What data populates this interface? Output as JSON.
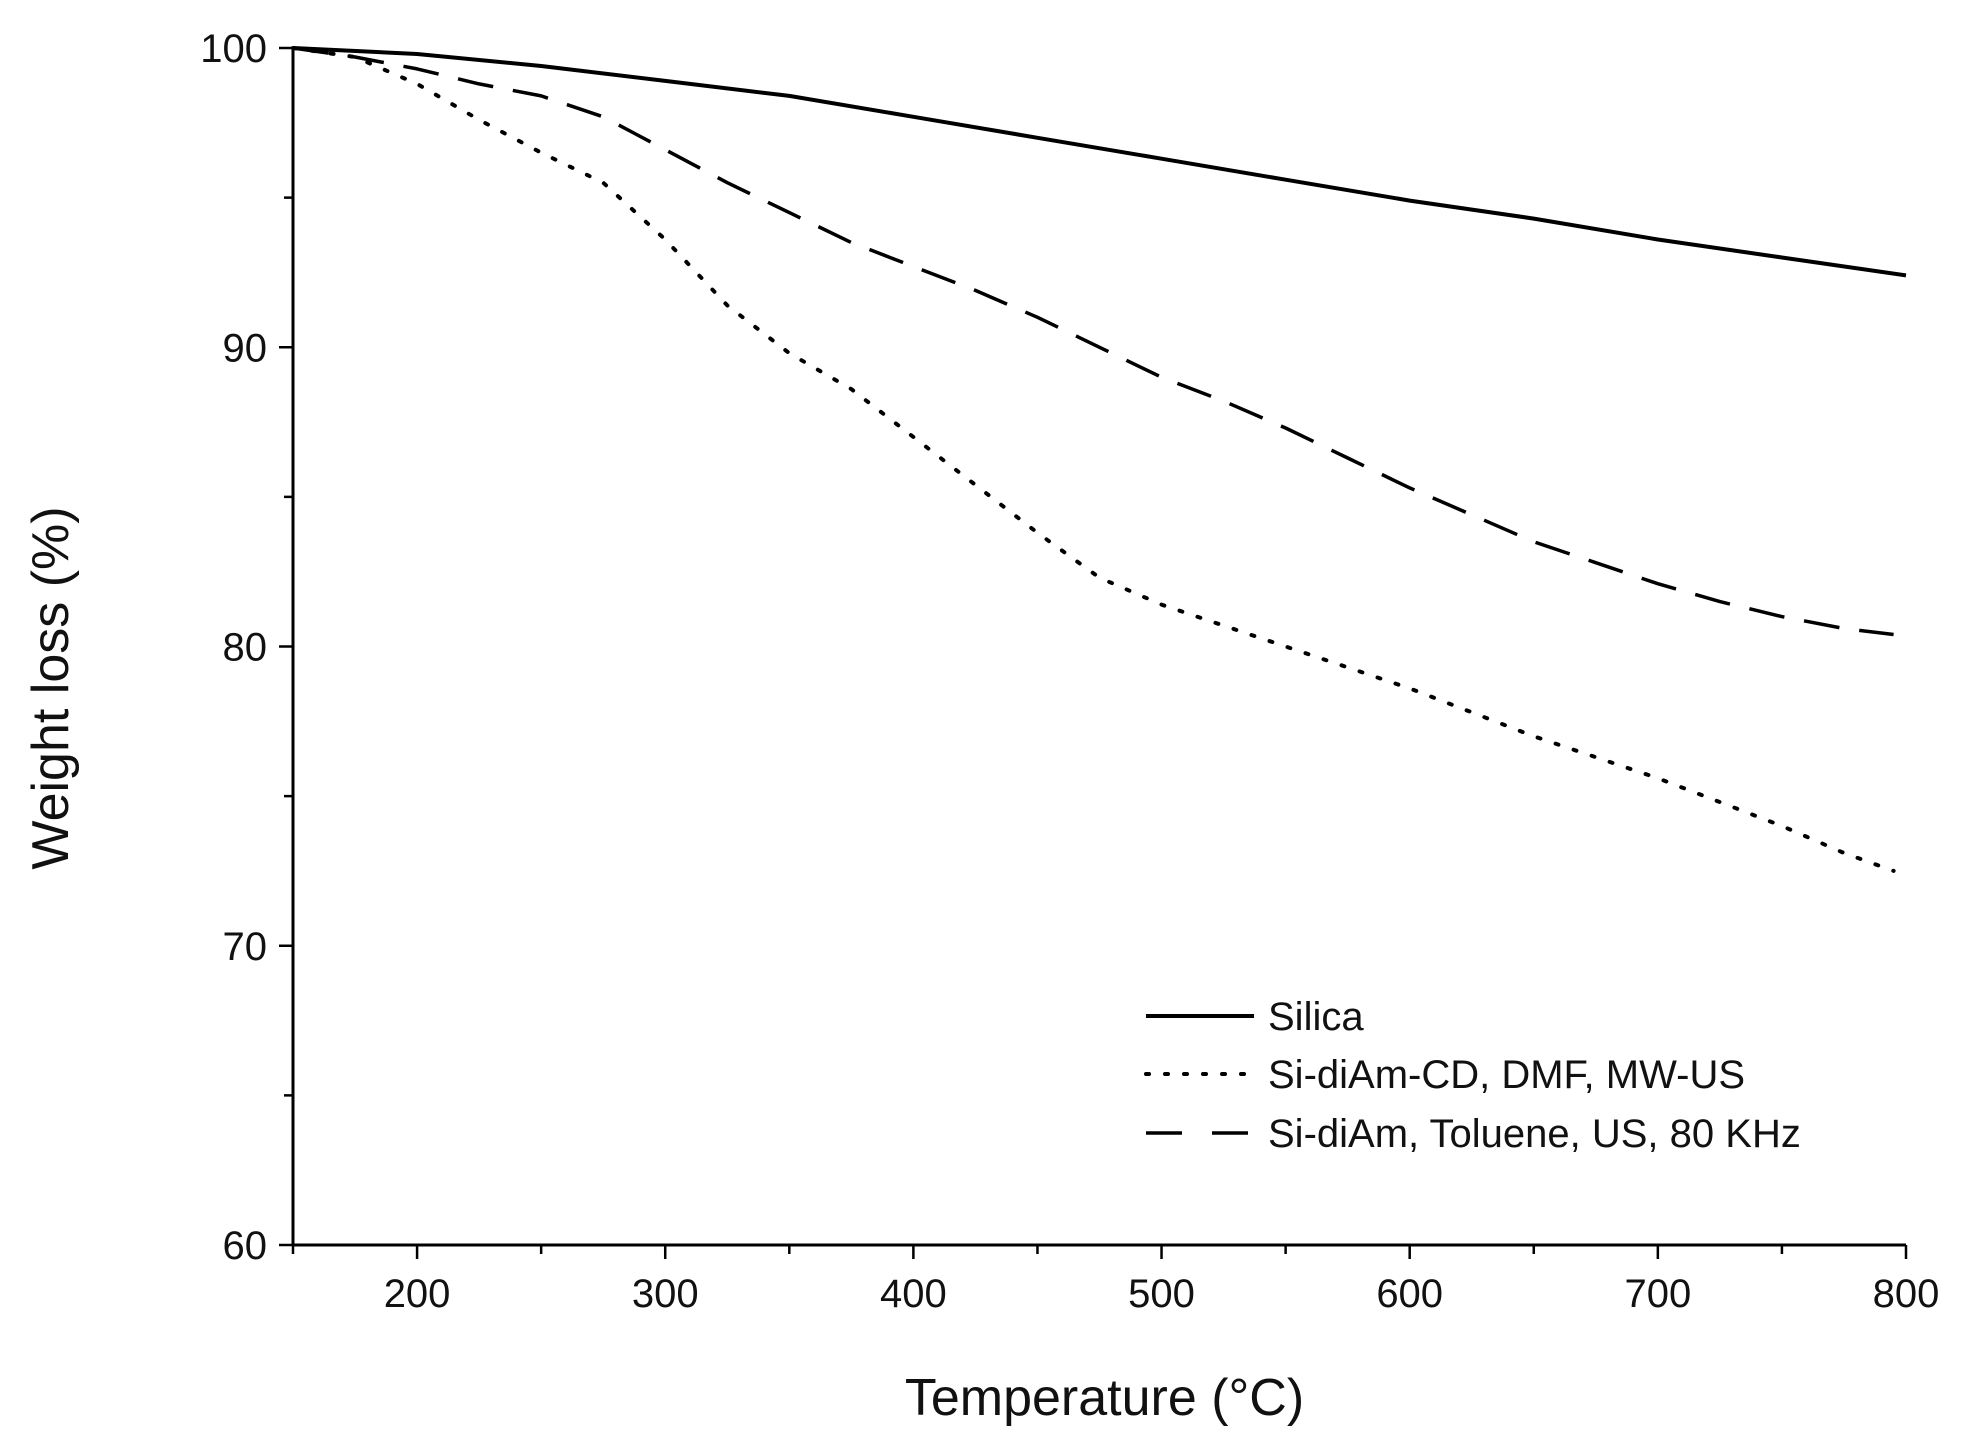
{
  "chart_data": {
    "type": "line",
    "title": "",
    "xlabel": "Temperature (°C)",
    "ylabel": "Weight loss (%)",
    "xlim": [
      150,
      800
    ],
    "ylim": [
      60,
      100
    ],
    "x_ticks": [
      200,
      300,
      400,
      500,
      600,
      700,
      800
    ],
    "x_tick_labels": [
      "200",
      "300",
      "400",
      "500",
      "600",
      "700",
      "800"
    ],
    "y_ticks": [
      60,
      70,
      80,
      90,
      100
    ],
    "y_tick_labels": [
      "60",
      "70",
      "80",
      "90",
      "100"
    ],
    "grid": false,
    "legend_position": "bottom-right",
    "series": [
      {
        "name": "Silica",
        "style": "solid",
        "color": "#000000",
        "x": [
          150,
          200,
          250,
          300,
          350,
          400,
          450,
          500,
          550,
          600,
          650,
          700,
          750,
          800
        ],
        "y": [
          100,
          99.8,
          99.4,
          98.9,
          98.4,
          97.7,
          97.0,
          96.3,
          95.6,
          94.9,
          94.3,
          93.6,
          93.0,
          92.4
        ]
      },
      {
        "name": "Si-diAm-CD, DMF, MW-US",
        "style": "dotted",
        "color": "#000000",
        "x": [
          150,
          175,
          200,
          225,
          250,
          275,
          300,
          325,
          350,
          375,
          400,
          425,
          450,
          475,
          500,
          525,
          550,
          575,
          600,
          625,
          650,
          675,
          700,
          725,
          750,
          775,
          795
        ],
        "y": [
          100,
          99.7,
          98.8,
          97.6,
          96.5,
          95.5,
          93.6,
          91.4,
          89.8,
          88.6,
          87.0,
          85.4,
          83.8,
          82.3,
          81.4,
          80.7,
          80.0,
          79.3,
          78.6,
          77.8,
          77.0,
          76.3,
          75.6,
          74.8,
          74.0,
          73.1,
          72.5
        ]
      },
      {
        "name": "Si-diAm, Toluene, US, 80 KHz",
        "style": "dashed",
        "color": "#000000",
        "x": [
          150,
          175,
          200,
          225,
          250,
          275,
          300,
          325,
          350,
          375,
          400,
          425,
          450,
          475,
          500,
          525,
          550,
          575,
          600,
          625,
          650,
          675,
          700,
          725,
          750,
          775,
          795
        ],
        "y": [
          100,
          99.7,
          99.3,
          98.8,
          98.4,
          97.7,
          96.6,
          95.5,
          94.5,
          93.5,
          92.7,
          91.9,
          91.0,
          90.0,
          89.0,
          88.2,
          87.3,
          86.3,
          85.3,
          84.4,
          83.5,
          82.8,
          82.1,
          81.5,
          81.0,
          80.6,
          80.4
        ]
      }
    ]
  }
}
